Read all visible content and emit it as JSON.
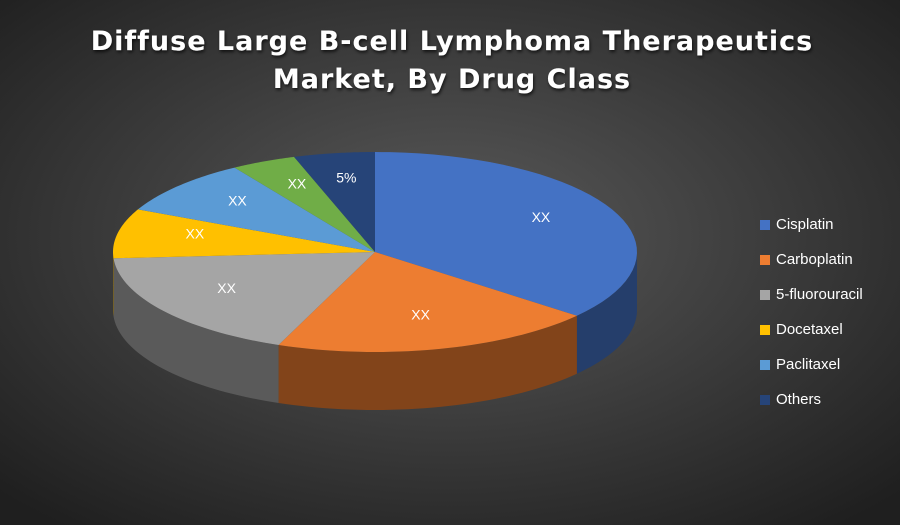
{
  "chart_data": {
    "type": "pie3d",
    "title": "Diffuse Large B-cell Lymphoma Therapeutics Market, By Drug Class",
    "categories": [
      "Cisplatin",
      "Carboplatin",
      "5-fluorouracil",
      "Docetaxel",
      "Paclitaxel",
      null,
      "Others"
    ],
    "values": [
      36,
      20,
      18,
      8,
      9,
      4,
      5
    ],
    "value_labels": [
      "XX",
      "XX",
      "XX",
      "XX",
      "XX",
      "XX",
      "5%"
    ],
    "colors": [
      "#4472c4",
      "#ed7d31",
      "#a5a5a5",
      "#ffc000",
      "#5b9bd5",
      "#70ad47",
      "#264478"
    ],
    "legend": "right"
  }
}
